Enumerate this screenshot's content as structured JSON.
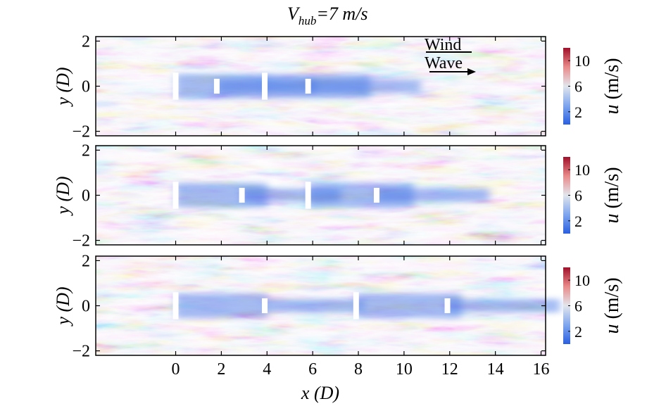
{
  "title": {
    "symbol": "V",
    "subscript": "hub",
    "rest": "=7 m/s"
  },
  "xlabel": "x (D)",
  "ylabel": "y (D)",
  "colorbar_label": "u (m/s)",
  "annotations": {
    "wind": "Wind",
    "wave": "Wave"
  },
  "colors": {
    "low": "#2a5fe0",
    "mid": "#dfe4ea",
    "high": "#b0152e"
  },
  "chart_data": {
    "type": "heatmap",
    "description_fields": "wind-speed u field, three panels sharing x axis",
    "x_ticks": [
      0,
      2,
      4,
      6,
      8,
      10,
      12,
      14,
      16
    ],
    "x_tick_labels": [
      "0",
      "2",
      "4",
      "6",
      "8",
      "10",
      "12",
      "14",
      "16"
    ],
    "y_ticks": [
      -2,
      0,
      2
    ],
    "y_tick_labels": [
      "−2",
      "0",
      "2"
    ],
    "xlim": [
      -3.5,
      16.2
    ],
    "ylim": [
      -2.2,
      2.2
    ],
    "colorbar_ticks": [
      2,
      6,
      10
    ],
    "colorbar_tick_labels": [
      "2",
      "6",
      "10"
    ],
    "colorbar_range": [
      0,
      12
    ],
    "panels": [
      {
        "turbines": [
          {
            "x": 0,
            "half_height": 0.6
          },
          {
            "x": 1.8,
            "half_height": 0.33
          },
          {
            "x": 3.9,
            "half_height": 0.6
          },
          {
            "x": 5.8,
            "half_height": 0.33
          }
        ]
      },
      {
        "turbines": [
          {
            "x": 0,
            "half_height": 0.6
          },
          {
            "x": 2.9,
            "half_height": 0.33
          },
          {
            "x": 5.8,
            "half_height": 0.6
          },
          {
            "x": 8.8,
            "half_height": 0.33
          }
        ]
      },
      {
        "turbines": [
          {
            "x": 0,
            "half_height": 0.6
          },
          {
            "x": 3.9,
            "half_height": 0.33
          },
          {
            "x": 7.9,
            "half_height": 0.6
          },
          {
            "x": 11.9,
            "half_height": 0.33
          }
        ]
      }
    ]
  }
}
